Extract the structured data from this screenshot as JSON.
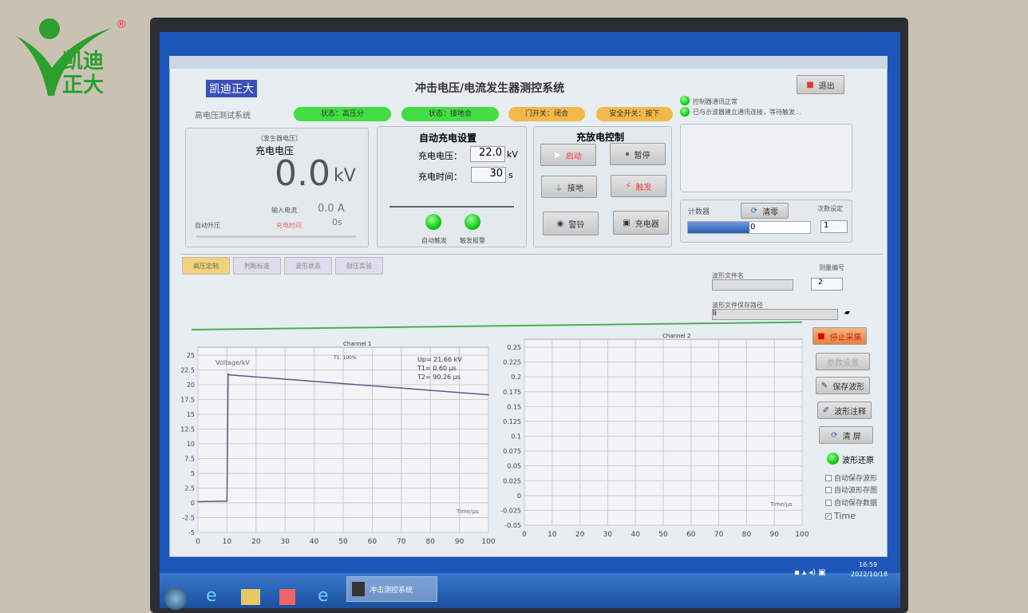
{
  "brand": {
    "logo_text": "凯迪正大",
    "registered": "®"
  },
  "window": {
    "title": "冲击电压/电流发生器测控系统",
    "logo": "凯迪正大",
    "subtitle": "高电压测试系统",
    "exit": "退出"
  },
  "status": [
    {
      "label": "状态：高压分",
      "color": "#44dd44"
    },
    {
      "label": "状态：接地合",
      "color": "#44dd44"
    },
    {
      "label": "门开关：闭合",
      "color": "#f2b84a"
    },
    {
      "label": "安全开关：按下",
      "color": "#f2b84a"
    }
  ],
  "messages": [
    "控制器通讯正常",
    "已与示波器建立通讯连接，等待触发..."
  ],
  "readout": {
    "caption": "（发生器电压）",
    "label": "充电电压",
    "value": "0.0",
    "unit": "kV",
    "current_label": "输入电流",
    "current": "0.0",
    "current_unit": "A",
    "auto_label": "自动升压",
    "time_label": "充电时间",
    "time": "0",
    "time_unit": "s"
  },
  "auto_charge": {
    "title": "自动充电设置",
    "voltage_label": "充电电压：",
    "voltage": "22.0",
    "voltage_unit": "kV",
    "time_label": "充电时间：",
    "time": "30",
    "time_unit": "s",
    "led1": "自动触发",
    "led2": "触发报警"
  },
  "control": {
    "title": "充放电控制",
    "buttons": [
      "启动",
      "暂停",
      "接地",
      "触发",
      "警铃",
      "充电器"
    ]
  },
  "counter": {
    "label": "计数器",
    "clear": "清零",
    "set_label": "次数设定",
    "value": "0",
    "set_value": "1",
    "progress": 0.5
  },
  "tabs": [
    "高压定制",
    "判断标准",
    "波形状态",
    "耐压实验"
  ],
  "file": {
    "name_label": "波形文件名",
    "name": "",
    "index_label": "测量编号",
    "index": "2",
    "path_label": "波形文件保存路径",
    "path": "li"
  },
  "side_buttons": [
    "停止采集",
    "参数设置",
    "保存波形",
    "波形注释",
    "清 屏"
  ],
  "led_label": "波形还原",
  "checkboxes": [
    {
      "label": "自动保存波形",
      "checked": false
    },
    {
      "label": "自动波形存图",
      "checked": false
    },
    {
      "label": "自动保存数据",
      "checked": false
    },
    {
      "label": "Time",
      "checked": true
    }
  ],
  "taskbar": {
    "app": "冲击测控系统",
    "time": "16:59",
    "date": "2022/10/18"
  },
  "chart_data": [
    {
      "type": "line",
      "title": "Channel 1",
      "ylabel": "Voltage/kV",
      "xlabel": "Time/μs",
      "xlim": [
        0,
        100
      ],
      "ylim": [
        -5,
        25
      ],
      "yticks": [
        -5,
        -2.5,
        0,
        2.5,
        5,
        7.5,
        10,
        12.5,
        15,
        17.5,
        20,
        22.5,
        25
      ],
      "xticks": [
        0,
        10,
        20,
        30,
        40,
        50,
        60,
        70,
        80,
        90,
        100
      ],
      "annotation_top": "T1: 100%",
      "annotations": [
        "Up= 21.66 kV",
        "T1= 0.60 μs",
        "T2= 90.26 μs"
      ],
      "x": [
        0,
        10,
        10.4,
        11,
        100
      ],
      "y": [
        0.2,
        0.3,
        21.8,
        21.66,
        18.3
      ],
      "grid": true
    },
    {
      "type": "line",
      "title": "Channel 2",
      "xlabel": "Time/μs",
      "xlim": [
        0,
        100
      ],
      "ylim": [
        -0.05,
        0.25
      ],
      "yticks": [
        -0.05,
        -0.025,
        0,
        0.025,
        0.05,
        0.075,
        0.1,
        0.125,
        0.15,
        0.175,
        0.2,
        0.225,
        0.25
      ],
      "xticks": [
        0,
        10,
        20,
        30,
        40,
        50,
        60,
        70,
        80,
        90,
        100
      ],
      "x": [],
      "y": [],
      "grid": true
    }
  ]
}
